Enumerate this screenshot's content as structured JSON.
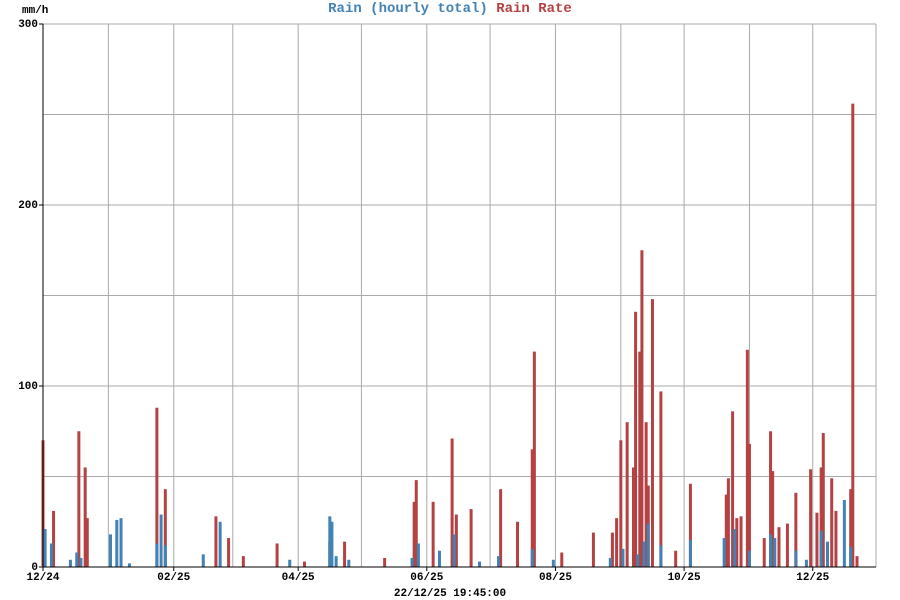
{
  "chart_data": {
    "type": "bar",
    "y_unit_label": "mm/h",
    "x_caption": "22/12/25 19:45:00",
    "xlim": [
      0,
      395
    ],
    "xticks": [
      {
        "value": 0,
        "label": "12/24"
      },
      {
        "value": 62,
        "label": "02/25"
      },
      {
        "value": 121,
        "label": "04/25"
      },
      {
        "value": 182,
        "label": "06/25"
      },
      {
        "value": 243,
        "label": "08/25"
      },
      {
        "value": 304,
        "label": "10/25"
      },
      {
        "value": 365,
        "label": "12/25"
      }
    ],
    "x_grid": [
      0,
      31,
      62,
      90,
      121,
      151,
      182,
      212,
      243,
      274,
      304,
      335,
      365,
      395
    ],
    "ylim": [
      0,
      300
    ],
    "yticks": [
      0,
      100,
      200,
      300
    ],
    "y_grid": [
      0,
      50,
      100,
      150,
      200,
      250,
      300
    ],
    "grid": true,
    "series": [
      {
        "name": "Rain Rate",
        "color": "#b44242",
        "x": [
          0,
          5,
          17,
          20,
          21,
          54,
          58,
          82,
          88,
          95,
          111,
          124,
          136,
          143,
          162,
          176,
          177,
          185,
          194,
          196,
          203,
          217,
          225,
          232,
          233,
          246,
          261,
          270,
          272,
          274,
          277,
          280,
          281,
          283,
          284,
          286,
          287,
          289,
          293,
          300,
          307,
          324,
          325,
          327,
          329,
          331,
          334,
          335,
          342,
          345,
          346,
          349,
          353,
          357,
          364,
          367,
          369,
          370,
          374,
          376,
          383,
          384,
          386
        ],
        "values": [
          70,
          31,
          75,
          55,
          27,
          88,
          43,
          28,
          16,
          6,
          13,
          3,
          14,
          14,
          5,
          36,
          48,
          36,
          71,
          29,
          32,
          43,
          25,
          65,
          119,
          8,
          19,
          19,
          27,
          70,
          80,
          55,
          141,
          119,
          175,
          80,
          45,
          148,
          97,
          9,
          46,
          40,
          49,
          86,
          27,
          28,
          120,
          68,
          16,
          75,
          53,
          22,
          24,
          41,
          54,
          30,
          55,
          74,
          49,
          31,
          43,
          256,
          6
        ]
      },
      {
        "name": "Rain (hourly total)",
        "color": "#4282b4",
        "x": [
          1,
          4,
          13,
          16,
          18,
          32,
          35,
          37,
          41,
          54,
          56,
          58,
          76,
          84,
          117,
          136,
          137,
          139,
          145,
          175,
          178,
          188,
          195,
          207,
          216,
          232,
          242,
          269,
          275,
          282,
          285,
          287,
          293,
          307,
          323,
          328,
          335,
          345,
          347,
          357,
          362,
          369,
          372,
          380,
          383
        ],
        "values": [
          21,
          13,
          4,
          8,
          5,
          18,
          26,
          27,
          2,
          13,
          29,
          12,
          7,
          25,
          4,
          28,
          25,
          6,
          4,
          5,
          13,
          9,
          18,
          3,
          6,
          10,
          4,
          5,
          10,
          7,
          14,
          24,
          12,
          15,
          16,
          21,
          9,
          18,
          16,
          9,
          4,
          20,
          14,
          37,
          11
        ]
      }
    ]
  }
}
